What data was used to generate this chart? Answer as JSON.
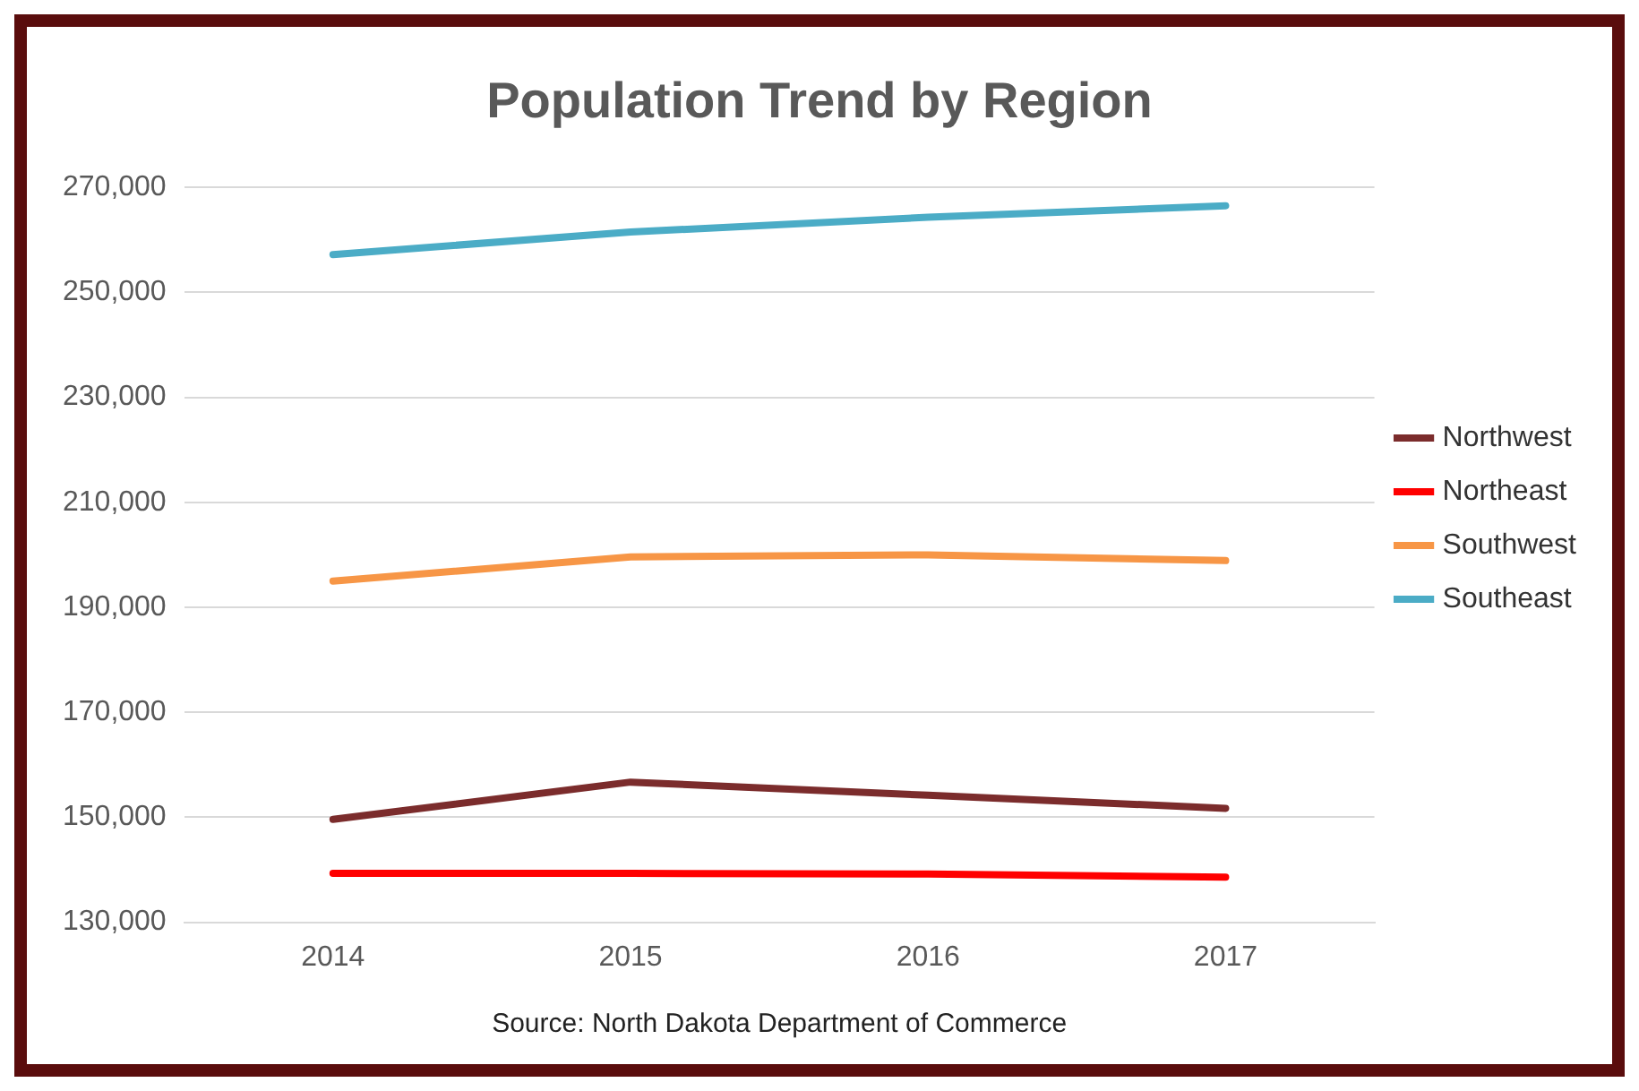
{
  "chart_data": {
    "type": "line",
    "title": "Population Trend by Region",
    "categories": [
      "2014",
      "2015",
      "2016",
      "2017"
    ],
    "series": [
      {
        "name": "Northwest",
        "color": "#7b2c2c",
        "values": [
          149600,
          156700,
          154200,
          151700
        ]
      },
      {
        "name": "Northeast",
        "color": "#ff0000",
        "values": [
          139300,
          139300,
          139200,
          138600
        ]
      },
      {
        "name": "Southwest",
        "color": "#f79646",
        "values": [
          195000,
          199600,
          200000,
          198900
        ]
      },
      {
        "name": "Southeast",
        "color": "#4bacc6",
        "values": [
          257200,
          261500,
          264300,
          266500
        ]
      }
    ],
    "ylim": [
      130000,
      270000
    ],
    "yticks": [
      {
        "value": 130000,
        "label": "130,000"
      },
      {
        "value": 150000,
        "label": "150,000"
      },
      {
        "value": 170000,
        "label": "170,000"
      },
      {
        "value": 190000,
        "label": "190,000"
      },
      {
        "value": 210000,
        "label": "210,000"
      },
      {
        "value": 230000,
        "label": "230,000"
      },
      {
        "value": 250000,
        "label": "250,000"
      },
      {
        "value": 270000,
        "label": "270,000"
      }
    ],
    "grid": "y",
    "legend": "right",
    "marker": "none",
    "line_style": "solid",
    "annotations": [
      "Source: North Dakota Department of Commerce"
    ]
  }
}
